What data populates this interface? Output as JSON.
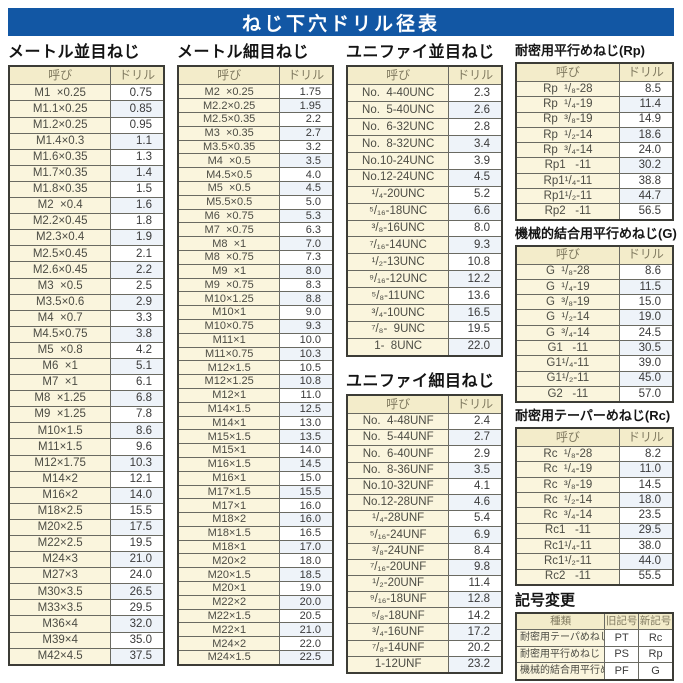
{
  "page_title": "ねじ下穴ドリル径表",
  "colors": {
    "title_bar": "#1257a4",
    "table_header_bg": "#f3ecca",
    "name_cell_bg": "#faf5dd",
    "alt_value_bg": "#eef3f9"
  },
  "tables": {
    "metric_coarse": {
      "heading": "メートル並目ねじ",
      "col_headers": [
        "呼び",
        "ドリル"
      ],
      "rows": [
        [
          "M1  ×0.25",
          "0.75"
        ],
        [
          "M1.1×0.25",
          "0.85"
        ],
        [
          "M1.2×0.25",
          "0.95"
        ],
        [
          "M1.4×0.3",
          "1.1"
        ],
        [
          "M1.6×0.35",
          "1.3"
        ],
        [
          "M1.7×0.35",
          "1.4"
        ],
        [
          "M1.8×0.35",
          "1.5"
        ],
        [
          "M2  ×0.4",
          "1.6"
        ],
        [
          "M2.2×0.45",
          "1.8"
        ],
        [
          "M2.3×0.4",
          "1.9"
        ],
        [
          "M2.5×0.45",
          "2.1"
        ],
        [
          "M2.6×0.45",
          "2.2"
        ],
        [
          "M3  ×0.5",
          "2.5"
        ],
        [
          "M3.5×0.6",
          "2.9"
        ],
        [
          "M4  ×0.7",
          "3.3"
        ],
        [
          "M4.5×0.75",
          "3.8"
        ],
        [
          "M5  ×0.8",
          "4.2"
        ],
        [
          "M6  ×1",
          "5.1"
        ],
        [
          "M7  ×1",
          "6.1"
        ],
        [
          "M8  ×1.25",
          "6.8"
        ],
        [
          "M9  ×1.25",
          "7.8"
        ],
        [
          "M10×1.5",
          "8.6"
        ],
        [
          "M11×1.5",
          "9.6"
        ],
        [
          "M12×1.75",
          "10.3"
        ],
        [
          "M14×2",
          "12.1"
        ],
        [
          "M16×2",
          "14.0"
        ],
        [
          "M18×2.5",
          "15.5"
        ],
        [
          "M20×2.5",
          "17.5"
        ],
        [
          "M22×2.5",
          "19.5"
        ],
        [
          "M24×3",
          "21.0"
        ],
        [
          "M27×3",
          "24.0"
        ],
        [
          "M30×3.5",
          "26.5"
        ],
        [
          "M33×3.5",
          "29.5"
        ],
        [
          "M36×4",
          "32.0"
        ],
        [
          "M39×4",
          "35.0"
        ],
        [
          "M42×4.5",
          "37.5"
        ]
      ]
    },
    "metric_fine": {
      "heading": "メートル細目ねじ",
      "col_headers": [
        "呼び",
        "ドリル"
      ],
      "rows": [
        [
          "M2  ×0.25",
          "1.75"
        ],
        [
          "M2.2×0.25",
          "1.95"
        ],
        [
          "M2.5×0.35",
          "2.2"
        ],
        [
          "M3  ×0.35",
          "2.7"
        ],
        [
          "M3.5×0.35",
          "3.2"
        ],
        [
          "M4  ×0.5",
          "3.5"
        ],
        [
          "M4.5×0.5",
          "4.0"
        ],
        [
          "M5  ×0.5",
          "4.5"
        ],
        [
          "M5.5×0.5",
          "5.0"
        ],
        [
          "M6  ×0.75",
          "5.3"
        ],
        [
          "M7  ×0.75",
          "6.3"
        ],
        [
          "M8  ×1",
          "7.0"
        ],
        [
          "M8  ×0.75",
          "7.3"
        ],
        [
          "M9  ×1",
          "8.0"
        ],
        [
          "M9  ×0.75",
          "8.3"
        ],
        [
          "M10×1.25",
          "8.8"
        ],
        [
          "M10×1",
          "9.0"
        ],
        [
          "M10×0.75",
          "9.3"
        ],
        [
          "M11×1",
          "10.0"
        ],
        [
          "M11×0.75",
          "10.3"
        ],
        [
          "M12×1.5",
          "10.5"
        ],
        [
          "M12×1.25",
          "10.8"
        ],
        [
          "M12×1",
          "11.0"
        ],
        [
          "M14×1.5",
          "12.5"
        ],
        [
          "M14×1",
          "13.0"
        ],
        [
          "M15×1.5",
          "13.5"
        ],
        [
          "M15×1",
          "14.0"
        ],
        [
          "M16×1.5",
          "14.5"
        ],
        [
          "M16×1",
          "15.0"
        ],
        [
          "M17×1.5",
          "15.5"
        ],
        [
          "M17×1",
          "16.0"
        ],
        [
          "M18×2",
          "16.0"
        ],
        [
          "M18×1.5",
          "16.5"
        ],
        [
          "M18×1",
          "17.0"
        ],
        [
          "M20×2",
          "18.0"
        ],
        [
          "M20×1.5",
          "18.5"
        ],
        [
          "M20×1",
          "19.0"
        ],
        [
          "M22×2",
          "20.0"
        ],
        [
          "M22×1.5",
          "20.5"
        ],
        [
          "M22×1",
          "21.0"
        ],
        [
          "M24×2",
          "22.0"
        ],
        [
          "M24×1.5",
          "22.5"
        ]
      ]
    },
    "unified_coarse": {
      "heading": "ユニファイ並目ねじ",
      "col_headers": [
        "呼び",
        "ドリル"
      ],
      "rows": [
        [
          "No.  4-40UNC",
          "2.3"
        ],
        [
          "No.  5-40UNC",
          "2.6"
        ],
        [
          "No.  6-32UNC",
          "2.8"
        ],
        [
          "No.  8-32UNC",
          "3.4"
        ],
        [
          "No.10-24UNC",
          "3.9"
        ],
        [
          "No.12-24UNC",
          "4.5"
        ],
        [
          "¹/₄-20UNC",
          "5.2"
        ],
        [
          "⁵/₁₆-18UNC",
          "6.6"
        ],
        [
          "³/₈-16UNC",
          "8.0"
        ],
        [
          "⁷/₁₆-14UNC",
          "9.3"
        ],
        [
          "¹/₂-13UNC",
          "10.8"
        ],
        [
          "⁹/₁₆-12UNC",
          "12.2"
        ],
        [
          "⁵/₈-11UNC",
          "13.6"
        ],
        [
          "³/₄-10UNC",
          "16.5"
        ],
        [
          "⁷/₈-  9UNC",
          "19.5"
        ],
        [
          "1-  8UNC",
          "22.0"
        ]
      ]
    },
    "unified_fine": {
      "heading": "ユニファイ細目ねじ",
      "col_headers": [
        "呼び",
        "ドリル"
      ],
      "rows": [
        [
          "No.  4-48UNF",
          "2.4"
        ],
        [
          "No.  5-44UNF",
          "2.7"
        ],
        [
          "No.  6-40UNF",
          "2.9"
        ],
        [
          "No.  8-36UNF",
          "3.5"
        ],
        [
          "No.10-32UNF",
          "4.1"
        ],
        [
          "No.12-28UNF",
          "4.6"
        ],
        [
          "¹/₄-28UNF",
          "5.4"
        ],
        [
          "⁵/₁₆-24UNF",
          "6.9"
        ],
        [
          "³/₈-24UNF",
          "8.4"
        ],
        [
          "⁷/₁₆-20UNF",
          "9.8"
        ],
        [
          "¹/₂-20UNF",
          "11.4"
        ],
        [
          "⁹/₁₆-18UNF",
          "12.8"
        ],
        [
          "⁵/₈-18UNF",
          "14.2"
        ],
        [
          "³/₄-16UNF",
          "17.2"
        ],
        [
          "⁷/₈-14UNF",
          "20.2"
        ],
        [
          "1-12UNF",
          "23.2"
        ]
      ]
    },
    "rp": {
      "heading": "耐密用平行めねじ(Rp)",
      "col_headers": [
        "呼び",
        "ドリル"
      ],
      "rows": [
        [
          "Rp  ¹/₈-28",
          "8.5"
        ],
        [
          "Rp  ¹/₄-19",
          "11.4"
        ],
        [
          "Rp  ³/₈-19",
          "14.9"
        ],
        [
          "Rp  ¹/₂-14",
          "18.6"
        ],
        [
          "Rp  ³/₄-14",
          "24.0"
        ],
        [
          "Rp1   -11",
          "30.2"
        ],
        [
          "Rp1¹/₄-11",
          "38.8"
        ],
        [
          "Rp1¹/₂-11",
          "44.7"
        ],
        [
          "Rp2   -11",
          "56.5"
        ]
      ]
    },
    "g": {
      "heading": "機械的結合用平行めねじ(G)",
      "col_headers": [
        "呼び",
        "ドリル"
      ],
      "rows": [
        [
          "G  ¹/₈-28",
          "8.6"
        ],
        [
          "G  ¹/₄-19",
          "11.5"
        ],
        [
          "G  ³/₈-19",
          "15.0"
        ],
        [
          "G  ¹/₂-14",
          "19.0"
        ],
        [
          "G  ³/₄-14",
          "24.5"
        ],
        [
          "G1   -11",
          "30.5"
        ],
        [
          "G1¹/₄-11",
          "39.0"
        ],
        [
          "G1¹/₂-11",
          "45.0"
        ],
        [
          "G2   -11",
          "57.0"
        ]
      ]
    },
    "rc": {
      "heading": "耐密用テーパーめねじ(Rc)",
      "col_headers": [
        "呼び",
        "ドリル"
      ],
      "rows": [
        [
          "Rc  ¹/₈-28",
          "8.2"
        ],
        [
          "Rc  ¹/₄-19",
          "11.0"
        ],
        [
          "Rc  ³/₈-19",
          "14.5"
        ],
        [
          "Rc  ¹/₂-14",
          "18.0"
        ],
        [
          "Rc  ³/₄-14",
          "23.5"
        ],
        [
          "Rc1   -11",
          "29.5"
        ],
        [
          "Rc1¹/₄-11",
          "38.0"
        ],
        [
          "Rc1¹/₂-11",
          "44.0"
        ],
        [
          "Rc2   -11",
          "55.5"
        ]
      ]
    },
    "symbol_change": {
      "heading": "記号変更",
      "col_headers": [
        "種類",
        "旧記号",
        "新記号"
      ],
      "rows": [
        [
          "耐密用テーパめねじ",
          "PT",
          "Rc"
        ],
        [
          "耐密用平行めねじ",
          "PS",
          "Rp"
        ],
        [
          "機械的結合用平行めねじ",
          "PF",
          "G"
        ]
      ]
    }
  }
}
